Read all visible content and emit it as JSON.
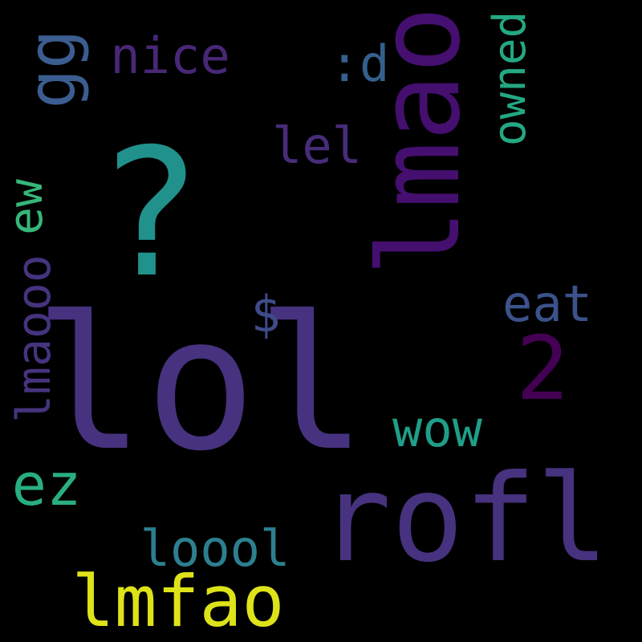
{
  "background": "#000000",
  "words": {
    "lol": {
      "text": "lol",
      "color": "#46327e"
    },
    "rofl": {
      "text": "rofl",
      "color": "#46327e"
    },
    "lmao": {
      "text": "lmao",
      "color": "#440f6e"
    },
    "q": {
      "text": "?",
      "color": "#21918c"
    },
    "lmfao": {
      "text": "lmfao",
      "color": "#dde318"
    },
    "two": {
      "text": "2",
      "color": "#440154"
    },
    "wow": {
      "text": "wow",
      "color": "#1f9e89"
    },
    "ez": {
      "text": "ez",
      "color": "#29af7f"
    },
    "loool": {
      "text": "loool",
      "color": "#2c7f8e"
    },
    "eat": {
      "text": "eat",
      "color": "#3b528b"
    },
    "nice": {
      "text": "nice",
      "color": "#482777"
    },
    "lel": {
      "text": "lel",
      "color": "#472c7a"
    },
    "dollar": {
      "text": "$",
      "color": "#3e4a89"
    },
    "d": {
      "text": ":d",
      "color": "#34608d"
    },
    "owned": {
      "text": "owned",
      "color": "#24a884"
    },
    "gg": {
      "text": "gg",
      "color": "#3b5d8f"
    },
    "ew": {
      "text": "ew",
      "color": "#35b779"
    },
    "lmaooo": {
      "text": "lmaooo",
      "color": "#46337f"
    }
  }
}
